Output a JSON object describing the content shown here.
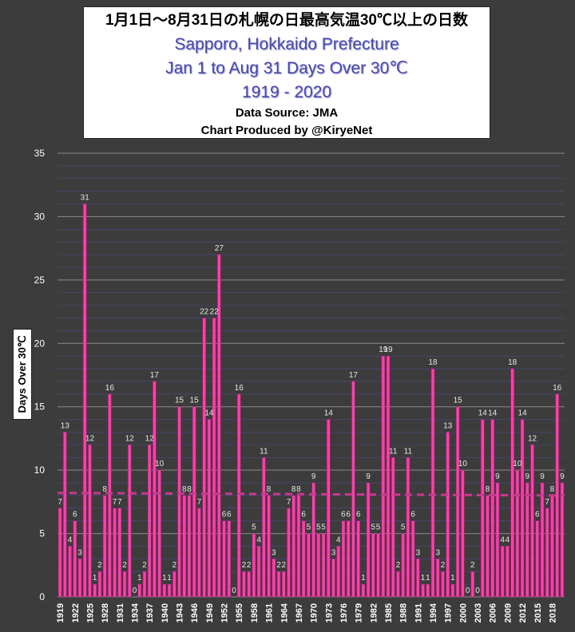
{
  "header": {
    "title_jp": "1月1日～8月31日の札幌の日最高気温30℃以上の日数",
    "title_en_1": "Sapporo, Hokkaido Prefecture",
    "title_en_2": "Jan 1 to Aug 31 Days Over 30℃",
    "title_en_3": "1919 - 2020",
    "source": "Data Source: JMA",
    "credit": "Chart Produced by @KiryeNet"
  },
  "chart_data": {
    "type": "bar",
    "ylabel": "Days Over 30℃",
    "ylim": [
      0,
      35
    ],
    "yticks": [
      0,
      5,
      10,
      15,
      20,
      25,
      30,
      35
    ],
    "x_start": 1919,
    "x_end": 2020,
    "xtick_labels": [
      "1919",
      "1922",
      "1925",
      "1928",
      "1931",
      "1934",
      "1937",
      "1940",
      "1943",
      "1946",
      "1949",
      "1952",
      "1955",
      "1958",
      "1961",
      "1964",
      "1967",
      "1970",
      "1973",
      "1976",
      "1979",
      "1982",
      "1985",
      "1988",
      "1991",
      "1994",
      "1997",
      "2000",
      "2003",
      "2006",
      "2009",
      "2012",
      "2015",
      "2018"
    ],
    "values": [
      7,
      13,
      4,
      6,
      3,
      31,
      12,
      1,
      2,
      8,
      16,
      7,
      7,
      2,
      12,
      0,
      1,
      2,
      12,
      17,
      10,
      1,
      1,
      2,
      15,
      8,
      8,
      15,
      7,
      22,
      14,
      22,
      27,
      6,
      6,
      0,
      16,
      2,
      2,
      5,
      4,
      11,
      8,
      3,
      2,
      2,
      7,
      8,
      8,
      6,
      5,
      9,
      5,
      5,
      14,
      3,
      4,
      6,
      6,
      17,
      6,
      1,
      9,
      5,
      5,
      19,
      19,
      11,
      2,
      5,
      11,
      6,
      3,
      1,
      1,
      18,
      3,
      2,
      13,
      1,
      15,
      10,
      0,
      2,
      0,
      14,
      8,
      14,
      9,
      4,
      4,
      18,
      10,
      14,
      9,
      12,
      6,
      9,
      7,
      8,
      16,
      9
    ],
    "trend_start": 8.2,
    "trend_end": 8.0,
    "grid": true,
    "bar_color": "#ff3fa8",
    "trend_color": "#c63a8c"
  }
}
